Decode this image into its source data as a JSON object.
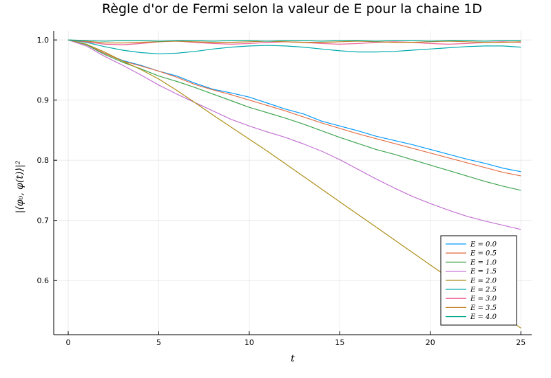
{
  "chart_data": {
    "type": "line",
    "title": "Règle d'or de Fermi selon la valeur de E pour la chaine 1D",
    "xlabel": "t",
    "ylabel": "|⟨φ₀, φ(t)⟩|²",
    "xlim": [
      -0.8,
      25.6
    ],
    "ylim": [
      0.51,
      1.015
    ],
    "xticks": [
      0,
      5,
      10,
      15,
      20,
      25
    ],
    "yticks": [
      0.6,
      0.7,
      0.8,
      0.9,
      1.0
    ],
    "xtick_labels": [
      "0",
      "5",
      "10",
      "15",
      "20",
      "25"
    ],
    "ytick_labels": [
      "0.6",
      "0.7",
      "0.8",
      "0.9",
      "1.0"
    ],
    "grid": true,
    "legend_position": "bottom-right",
    "series": [
      {
        "name": "E = 0.0",
        "color": "#009AFA",
        "x": [
          0,
          1,
          2,
          3,
          4,
          5,
          6,
          7,
          8,
          9,
          10,
          11,
          12,
          13,
          14,
          15,
          16,
          17,
          18,
          19,
          20,
          21,
          22,
          23,
          24,
          25
        ],
        "y": [
          1.0,
          0.992,
          0.978,
          0.966,
          0.958,
          0.948,
          0.94,
          0.928,
          0.918,
          0.912,
          0.905,
          0.895,
          0.885,
          0.877,
          0.865,
          0.857,
          0.849,
          0.84,
          0.833,
          0.826,
          0.818,
          0.81,
          0.802,
          0.795,
          0.787,
          0.781
        ]
      },
      {
        "name": "E = 0.5",
        "color": "#E36F47",
        "x": [
          0,
          1,
          2,
          3,
          4,
          5,
          6,
          7,
          8,
          9,
          10,
          11,
          12,
          13,
          14,
          15,
          16,
          17,
          18,
          19,
          20,
          21,
          22,
          23,
          24,
          25
        ],
        "y": [
          1.0,
          0.992,
          0.978,
          0.965,
          0.957,
          0.948,
          0.938,
          0.926,
          0.917,
          0.909,
          0.9,
          0.891,
          0.882,
          0.872,
          0.862,
          0.853,
          0.844,
          0.836,
          0.828,
          0.82,
          0.812,
          0.804,
          0.796,
          0.788,
          0.78,
          0.774
        ]
      },
      {
        "name": "E = 1.0",
        "color": "#3EA44E",
        "x": [
          0,
          1,
          2,
          3,
          4,
          5,
          6,
          7,
          8,
          9,
          10,
          11,
          12,
          13,
          14,
          15,
          16,
          17,
          18,
          19,
          20,
          21,
          22,
          23,
          24,
          25
        ],
        "y": [
          1.0,
          0.992,
          0.976,
          0.963,
          0.952,
          0.94,
          0.931,
          0.921,
          0.91,
          0.899,
          0.888,
          0.879,
          0.87,
          0.86,
          0.849,
          0.838,
          0.828,
          0.818,
          0.81,
          0.801,
          0.792,
          0.783,
          0.774,
          0.765,
          0.757,
          0.75
        ]
      },
      {
        "name": "E = 1.5",
        "color": "#C371D2",
        "x": [
          0,
          1,
          2,
          3,
          4,
          5,
          6,
          7,
          8,
          9,
          10,
          11,
          12,
          13,
          14,
          15,
          16,
          17,
          18,
          19,
          20,
          21,
          22,
          23,
          24,
          25
        ],
        "y": [
          1.0,
          0.99,
          0.973,
          0.958,
          0.942,
          0.925,
          0.91,
          0.896,
          0.882,
          0.868,
          0.857,
          0.847,
          0.838,
          0.827,
          0.815,
          0.801,
          0.785,
          0.769,
          0.754,
          0.74,
          0.728,
          0.717,
          0.707,
          0.699,
          0.692,
          0.685
        ]
      },
      {
        "name": "E = 2.0",
        "color": "#AC8E18",
        "x": [
          0,
          1,
          2,
          3,
          4,
          5,
          6,
          7,
          8,
          9,
          10,
          11,
          12,
          13,
          14,
          15,
          16,
          17,
          18,
          19,
          20,
          21,
          22,
          23,
          24,
          25
        ],
        "y": [
          1.0,
          0.993,
          0.98,
          0.965,
          0.951,
          0.935,
          0.916,
          0.896,
          0.875,
          0.855,
          0.835,
          0.815,
          0.794,
          0.773,
          0.752,
          0.731,
          0.71,
          0.689,
          0.668,
          0.647,
          0.626,
          0.605,
          0.584,
          0.563,
          0.542,
          0.521
        ]
      },
      {
        "name": "E = 2.5",
        "color": "#00A9AD",
        "x": [
          0,
          1,
          2,
          3,
          4,
          5,
          6,
          7,
          8,
          9,
          10,
          11,
          12,
          13,
          14,
          15,
          16,
          17,
          18,
          19,
          20,
          21,
          22,
          23,
          24,
          25
        ],
        "y": [
          1.0,
          0.996,
          0.989,
          0.983,
          0.979,
          0.977,
          0.978,
          0.981,
          0.985,
          0.988,
          0.99,
          0.991,
          0.99,
          0.988,
          0.985,
          0.982,
          0.98,
          0.98,
          0.981,
          0.983,
          0.985,
          0.987,
          0.989,
          0.99,
          0.99,
          0.988
        ]
      },
      {
        "name": "E = 3.0",
        "color": "#ED5D92",
        "x": [
          0,
          1,
          2,
          3,
          4,
          5,
          6,
          7,
          8,
          9,
          10,
          11,
          12,
          13,
          14,
          15,
          16,
          17,
          18,
          19,
          20,
          21,
          22,
          23,
          24,
          25
        ],
        "y": [
          1.0,
          0.997,
          0.993,
          0.992,
          0.994,
          0.997,
          0.998,
          0.996,
          0.994,
          0.993,
          0.994,
          0.996,
          0.997,
          0.996,
          0.994,
          0.993,
          0.994,
          0.996,
          0.997,
          0.996,
          0.994,
          0.993,
          0.994,
          0.996,
          0.997,
          0.996
        ]
      },
      {
        "name": "E = 3.5",
        "color": "#C68125",
        "x": [
          0,
          1,
          2,
          3,
          4,
          5,
          6,
          7,
          8,
          9,
          10,
          11,
          12,
          13,
          14,
          15,
          16,
          17,
          18,
          19,
          20,
          21,
          22,
          23,
          24,
          25
        ],
        "y": [
          1.0,
          0.998,
          0.995,
          0.995,
          0.996,
          0.997,
          0.998,
          0.997,
          0.996,
          0.996,
          0.997,
          0.998,
          0.997,
          0.996,
          0.996,
          0.997,
          0.998,
          0.997,
          0.996,
          0.996,
          0.997,
          0.998,
          0.997,
          0.996,
          0.996,
          0.997
        ]
      },
      {
        "name": "E = 4.0",
        "color": "#00A98D",
        "x": [
          0,
          1,
          2,
          3,
          4,
          5,
          6,
          7,
          8,
          9,
          10,
          11,
          12,
          13,
          14,
          15,
          16,
          17,
          18,
          19,
          20,
          21,
          22,
          23,
          24,
          25
        ],
        "y": [
          1.0,
          0.999,
          0.998,
          0.999,
          0.999,
          0.998,
          0.999,
          0.999,
          0.998,
          0.999,
          0.999,
          0.998,
          0.999,
          0.999,
          0.998,
          0.999,
          0.999,
          0.998,
          0.999,
          0.999,
          0.998,
          0.999,
          0.999,
          0.998,
          0.999,
          0.999
        ]
      }
    ]
  }
}
